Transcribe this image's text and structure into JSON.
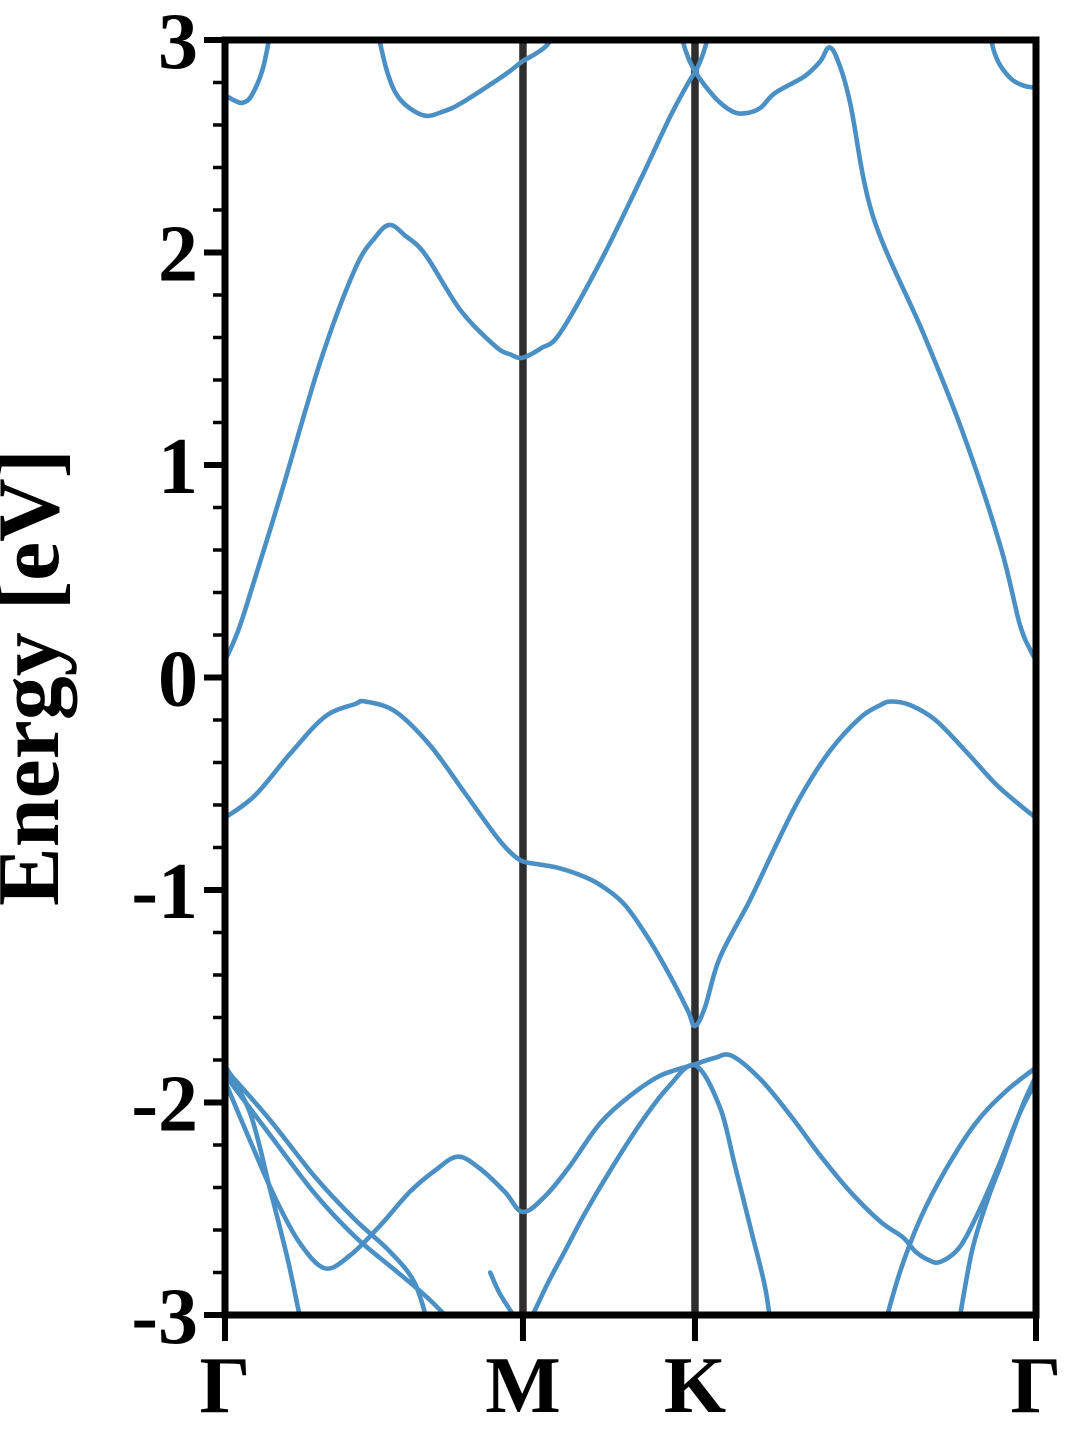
{
  "chart_data": {
    "type": "line",
    "title": "",
    "ylabel": "Energy [eV]",
    "xlabel": "",
    "ylim": [
      -3,
      3
    ],
    "xlim": [
      0,
      1
    ],
    "grid": "vertical-lines-at-high-symmetry-points-only",
    "legend": "none",
    "y_major_ticks": [
      3,
      2,
      1,
      0,
      -1,
      -2,
      -3
    ],
    "y_minor_tick_step": 0.2,
    "x_ticks": [
      {
        "label": "Γ",
        "pos": 0.0
      },
      {
        "label": "M",
        "pos": 0.3674
      },
      {
        "label": "K",
        "pos": 0.5795
      },
      {
        "label": "Γ",
        "pos": 1.0
      }
    ],
    "vertical_lines": [
      0.3674,
      0.5795
    ],
    "colors": {
      "band": "#4a90c4",
      "gridline": "#2e2e2e",
      "axis": "#000000",
      "background": "#ffffff"
    },
    "series": [
      {
        "name": "cb-top-left",
        "points": [
          [
            0,
            2.74
          ],
          [
            0.012,
            2.715
          ],
          [
            0.022,
            2.705
          ],
          [
            0.033,
            2.74
          ],
          [
            0.047,
            2.87
          ],
          [
            0.058,
            3.08
          ]
        ]
      },
      {
        "name": "cb-above-M",
        "points": [
          [
            0.186,
            3.08
          ],
          [
            0.2,
            2.85
          ],
          [
            0.216,
            2.72
          ],
          [
            0.245,
            2.645
          ],
          [
            0.27,
            2.665
          ],
          [
            0.29,
            2.7
          ],
          [
            0.327,
            2.79
          ],
          [
            0.35,
            2.85
          ],
          [
            0.367,
            2.9
          ],
          [
            0.385,
            2.94
          ],
          [
            0.399,
            2.985
          ],
          [
            0.411,
            3.08
          ]
        ]
      },
      {
        "name": "cb-main",
        "points": [
          [
            0,
            0.08
          ],
          [
            0.012,
            0.18
          ],
          [
            0.025,
            0.32
          ],
          [
            0.068,
            0.85
          ],
          [
            0.117,
            1.48
          ],
          [
            0.16,
            1.92
          ],
          [
            0.185,
            2.07
          ],
          [
            0.203,
            2.13
          ],
          [
            0.222,
            2.08
          ],
          [
            0.247,
            1.99
          ],
          [
            0.29,
            1.73
          ],
          [
            0.333,
            1.56
          ],
          [
            0.352,
            1.52
          ],
          [
            0.367,
            1.505
          ],
          [
            0.39,
            1.55
          ],
          [
            0.413,
            1.62
          ],
          [
            0.462,
            1.95
          ],
          [
            0.512,
            2.34
          ],
          [
            0.549,
            2.64
          ],
          [
            0.573,
            2.81
          ],
          [
            0.58,
            2.85
          ],
          [
            0.589,
            2.93
          ],
          [
            0.601,
            3.08
          ]
        ]
      },
      {
        "name": "cb-K-dip-peak-descent",
        "points": [
          [
            0.559,
            3.08
          ],
          [
            0.568,
            2.95
          ],
          [
            0.58,
            2.85
          ],
          [
            0.604,
            2.73
          ],
          [
            0.625,
            2.665
          ],
          [
            0.641,
            2.655
          ],
          [
            0.66,
            2.68
          ],
          [
            0.678,
            2.75
          ],
          [
            0.715,
            2.83
          ],
          [
            0.734,
            2.9
          ],
          [
            0.745,
            2.965
          ],
          [
            0.756,
            2.9
          ],
          [
            0.771,
            2.7
          ],
          [
            0.799,
            2.17
          ],
          [
            0.861,
            1.62
          ],
          [
            0.91,
            1.15
          ],
          [
            0.956,
            0.62
          ],
          [
            0.98,
            0.25
          ],
          [
            0.993,
            0.13
          ],
          [
            1,
            0.08
          ]
        ]
      },
      {
        "name": "cb-top-right",
        "points": [
          [
            0.94,
            3.08
          ],
          [
            0.948,
            2.95
          ],
          [
            0.956,
            2.88
          ],
          [
            0.97,
            2.815
          ],
          [
            0.985,
            2.785
          ],
          [
            1,
            2.775
          ]
        ]
      },
      {
        "name": "valence-top",
        "points": [
          [
            0,
            -0.66
          ],
          [
            0.037,
            -0.555
          ],
          [
            0.08,
            -0.36
          ],
          [
            0.123,
            -0.185
          ],
          [
            0.16,
            -0.125
          ],
          [
            0.173,
            -0.113
          ],
          [
            0.21,
            -0.16
          ],
          [
            0.253,
            -0.32
          ],
          [
            0.296,
            -0.545
          ],
          [
            0.333,
            -0.74
          ],
          [
            0.351,
            -0.82
          ],
          [
            0.367,
            -0.865
          ],
          [
            0.388,
            -0.88
          ],
          [
            0.41,
            -0.895
          ],
          [
            0.438,
            -0.93
          ],
          [
            0.462,
            -0.975
          ],
          [
            0.493,
            -1.07
          ],
          [
            0.524,
            -1.24
          ],
          [
            0.551,
            -1.42
          ],
          [
            0.571,
            -1.57
          ],
          [
            0.5795,
            -1.64
          ],
          [
            0.592,
            -1.55
          ],
          [
            0.61,
            -1.32
          ],
          [
            0.647,
            -1.05
          ],
          [
            0.678,
            -0.8
          ],
          [
            0.709,
            -0.565
          ],
          [
            0.746,
            -0.345
          ],
          [
            0.783,
            -0.19
          ],
          [
            0.808,
            -0.13
          ],
          [
            0.822,
            -0.113
          ],
          [
            0.845,
            -0.13
          ],
          [
            0.876,
            -0.2
          ],
          [
            0.913,
            -0.345
          ],
          [
            0.95,
            -0.5
          ],
          [
            0.98,
            -0.6
          ],
          [
            1,
            -0.66
          ]
        ]
      },
      {
        "name": "low-steep-left",
        "points": [
          [
            0,
            -1.825
          ],
          [
            0.031,
            -2.05
          ],
          [
            0.055,
            -2.4
          ],
          [
            0.078,
            -2.75
          ],
          [
            0.096,
            -3.08
          ]
        ]
      },
      {
        "name": "low-pair-a",
        "points": [
          [
            0,
            -1.84
          ],
          [
            0.055,
            -2.08
          ],
          [
            0.111,
            -2.35
          ],
          [
            0.16,
            -2.55
          ],
          [
            0.203,
            -2.7
          ],
          [
            0.234,
            -2.85
          ],
          [
            0.253,
            -3.08
          ]
        ]
      },
      {
        "name": "low-pair-b",
        "points": [
          [
            0,
            -1.87
          ],
          [
            0.055,
            -2.15
          ],
          [
            0.111,
            -2.43
          ],
          [
            0.16,
            -2.63
          ],
          [
            0.21,
            -2.79
          ],
          [
            0.25,
            -2.92
          ],
          [
            0.292,
            -3.08
          ]
        ]
      },
      {
        "name": "low-w-band",
        "points": [
          [
            0,
            -1.9
          ],
          [
            0.031,
            -2.18
          ],
          [
            0.062,
            -2.45
          ],
          [
            0.092,
            -2.66
          ],
          [
            0.123,
            -2.78
          ],
          [
            0.154,
            -2.72
          ],
          [
            0.191,
            -2.58
          ],
          [
            0.228,
            -2.42
          ],
          [
            0.259,
            -2.32
          ],
          [
            0.287,
            -2.255
          ],
          [
            0.314,
            -2.31
          ],
          [
            0.345,
            -2.42
          ],
          [
            0.367,
            -2.515
          ],
          [
            0.395,
            -2.44
          ],
          [
            0.425,
            -2.3
          ],
          [
            0.462,
            -2.1
          ],
          [
            0.499,
            -1.97
          ],
          [
            0.536,
            -1.875
          ],
          [
            0.5795,
            -1.82
          ],
          [
            0.604,
            -1.79
          ],
          [
            0.625,
            -1.78
          ],
          [
            0.66,
            -1.89
          ],
          [
            0.697,
            -2.06
          ],
          [
            0.734,
            -2.25
          ],
          [
            0.771,
            -2.42
          ],
          [
            0.808,
            -2.56
          ],
          [
            0.836,
            -2.635
          ],
          [
            0.851,
            -2.7
          ],
          [
            0.867,
            -2.74
          ],
          [
            0.882,
            -2.75
          ],
          [
            0.906,
            -2.68
          ],
          [
            0.931,
            -2.5
          ],
          [
            0.956,
            -2.28
          ],
          [
            0.98,
            -2.05
          ],
          [
            1,
            -1.9
          ]
        ]
      },
      {
        "name": "low-lambda-M-K",
        "points": [
          [
            0.327,
            -2.8
          ],
          [
            0.339,
            -2.9
          ],
          [
            0.359,
            -3.02
          ],
          [
            0.367,
            -3.06
          ],
          [
            0.379,
            -3.0
          ],
          [
            0.398,
            -2.85
          ],
          [
            0.419,
            -2.7
          ],
          [
            0.444,
            -2.52
          ],
          [
            0.475,
            -2.32
          ],
          [
            0.512,
            -2.1
          ],
          [
            0.546,
            -1.93
          ],
          [
            0.5795,
            -1.825
          ],
          [
            0.61,
            -2.02
          ],
          [
            0.629,
            -2.3
          ],
          [
            0.65,
            -2.62
          ],
          [
            0.666,
            -2.87
          ],
          [
            0.674,
            -3.08
          ]
        ]
      },
      {
        "name": "low-right-a",
        "points": [
          [
            0.811,
            -3.08
          ],
          [
            0.832,
            -2.8
          ],
          [
            0.857,
            -2.55
          ],
          [
            0.888,
            -2.32
          ],
          [
            0.925,
            -2.1
          ],
          [
            0.962,
            -1.95
          ],
          [
            1,
            -1.835
          ]
        ]
      },
      {
        "name": "low-right-b",
        "points": [
          [
            0.903,
            -3.08
          ],
          [
            0.921,
            -2.7
          ],
          [
            0.941,
            -2.45
          ],
          [
            0.956,
            -2.3
          ],
          [
            0.97,
            -2.15
          ],
          [
            0.985,
            -2.0
          ],
          [
            1,
            -1.875
          ]
        ]
      }
    ]
  }
}
